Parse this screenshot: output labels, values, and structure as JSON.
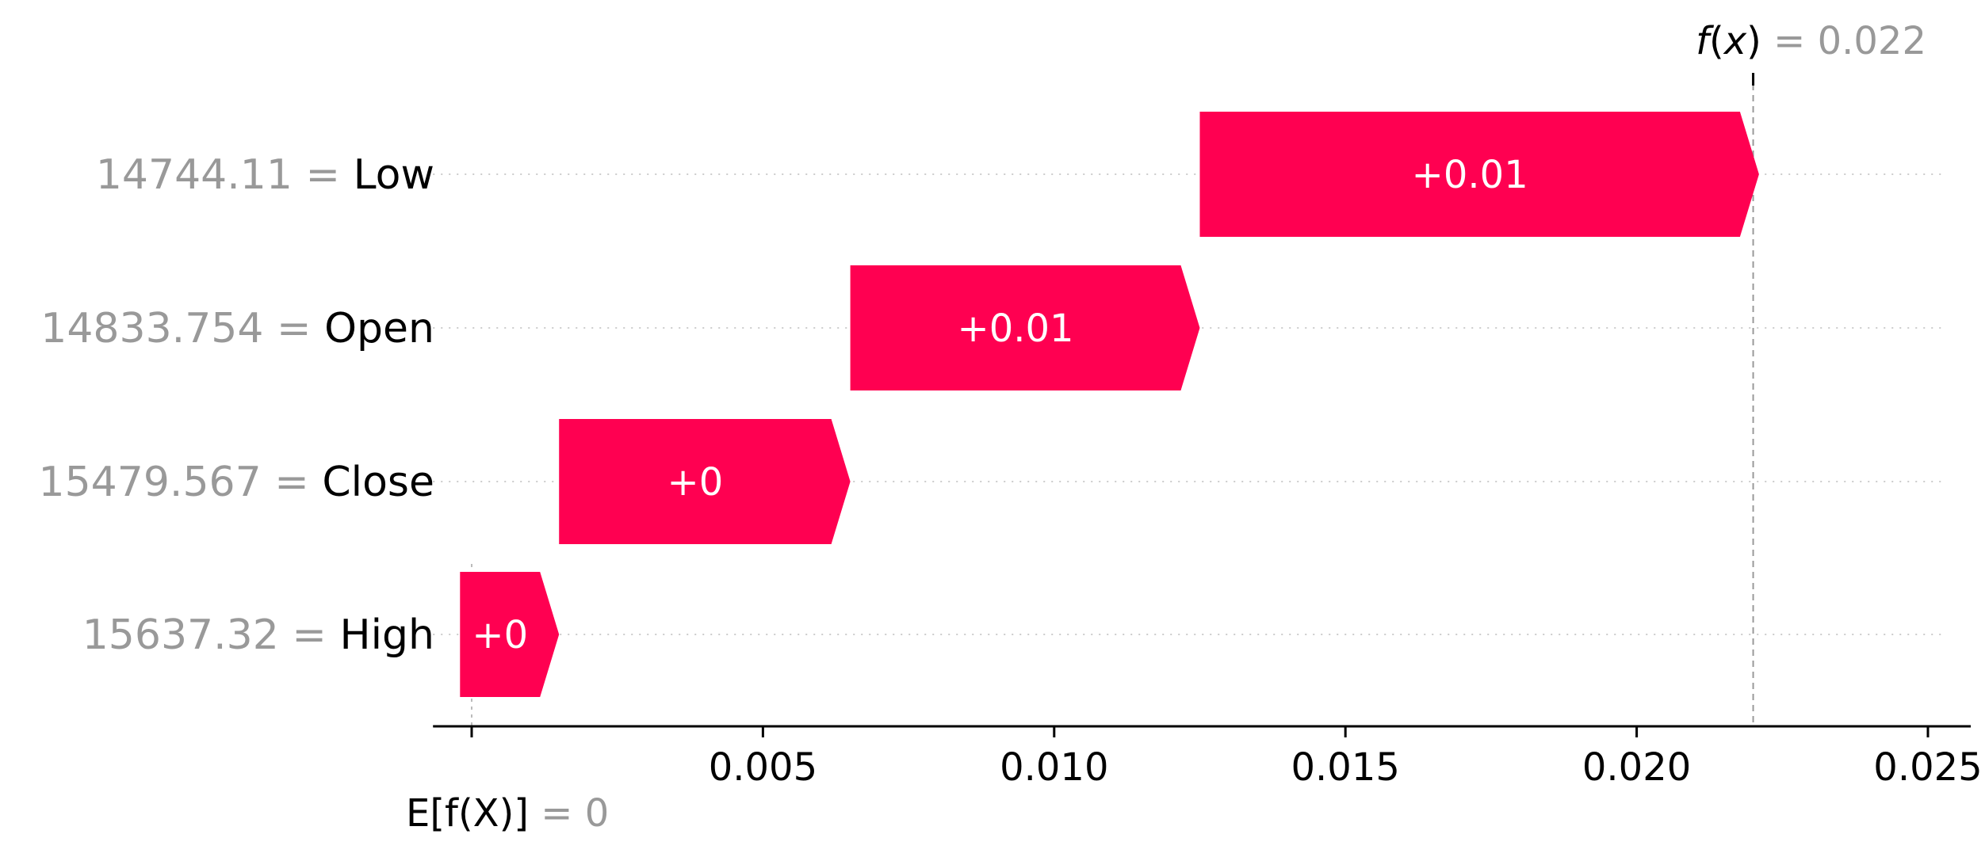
{
  "chart_data": {
    "type": "waterfall",
    "base_value": 0,
    "output_value": 0.022,
    "xlim": [
      -0.0005,
      0.0256
    ],
    "x_ticks": [
      {
        "value": 0,
        "label": ""
      },
      {
        "value": 0.005,
        "label": "0.005"
      },
      {
        "value": 0.01,
        "label": "0.010"
      },
      {
        "value": 0.015,
        "label": "0.015"
      },
      {
        "value": 0.02,
        "label": "0.020"
      },
      {
        "value": 0.025,
        "label": "0.025"
      }
    ],
    "features": [
      {
        "name": "Low",
        "value_text": "14744.11",
        "start": 0.0125,
        "end": 0.0221,
        "label": "+0.01"
      },
      {
        "name": "Open",
        "value_text": "14833.754",
        "start": 0.0065,
        "end": 0.0125,
        "label": "+0.01"
      },
      {
        "name": "Close",
        "value_text": "15479.567",
        "start": 0.0015,
        "end": 0.0065,
        "label": "+0"
      },
      {
        "name": "High",
        "value_text": "15637.32",
        "start": -0.0002,
        "end": 0.0015,
        "label": "+0"
      }
    ],
    "fx_label": {
      "func": "f",
      "var": "x",
      "value": "0.022"
    },
    "efx_label": {
      "text": "E[f(X)]",
      "value": "0"
    },
    "bar_color": "#ff0051"
  }
}
